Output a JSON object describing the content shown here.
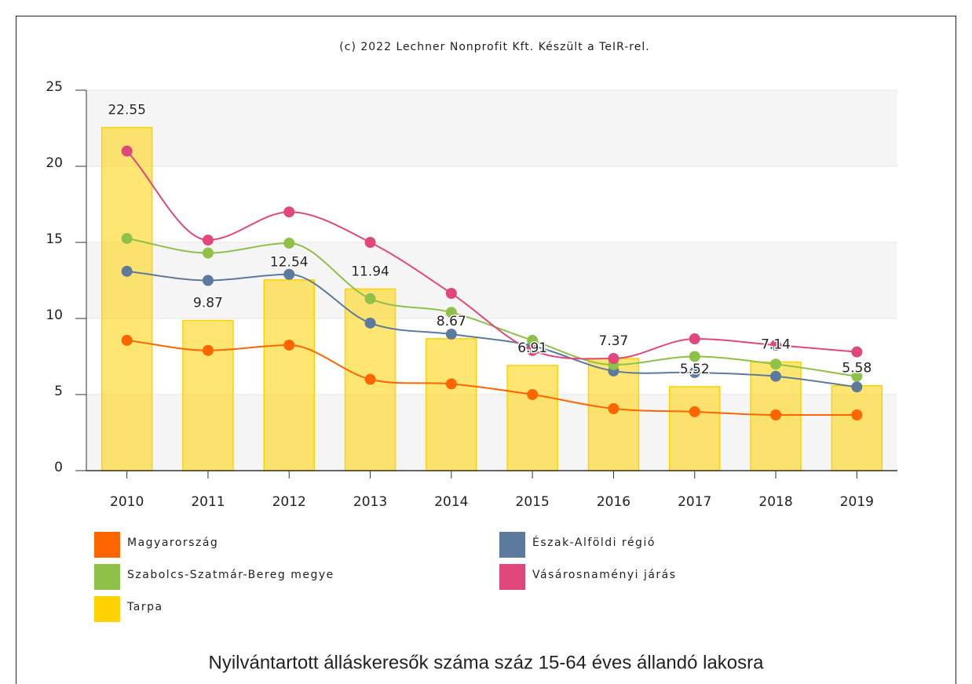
{
  "chart_data": {
    "type": "combo",
    "credits": "(c) 2022 Lechner Nonprofit Kft. Készült a TeIR-rel.",
    "title": "Nyilvántartott álláskeresők száma száz 15-64 éves állandó lakosra",
    "categories": [
      "2010",
      "2011",
      "2012",
      "2013",
      "2014",
      "2015",
      "2016",
      "2017",
      "2018",
      "2019"
    ],
    "ylim": [
      0,
      25
    ],
    "yticks": [
      0,
      5,
      10,
      15,
      20,
      25
    ],
    "grid": true,
    "legend_position": "bottom",
    "series": [
      {
        "name": "Magyarország",
        "type": "line",
        "color": "#ff6600",
        "values": [
          8.56,
          7.9,
          8.25,
          6.0,
          5.7,
          5.0,
          4.07,
          3.87,
          3.66,
          3.66
        ]
      },
      {
        "name": "Észak-Alföldi régió",
        "type": "line",
        "color": "#5b7a9e",
        "values": [
          13.1,
          12.5,
          12.9,
          9.7,
          8.97,
          8.2,
          6.55,
          6.45,
          6.2,
          5.5
        ]
      },
      {
        "name": "Szabolcs-Szatmár-Bereg megye",
        "type": "line",
        "color": "#8fc048",
        "values": [
          15.26,
          14.3,
          14.95,
          11.3,
          10.4,
          8.56,
          6.96,
          7.5,
          7.0,
          6.2
        ]
      },
      {
        "name": "Vásárosnaményi járás",
        "type": "line",
        "color": "#e0487c",
        "values": [
          21.0,
          15.15,
          17.0,
          15.0,
          11.65,
          7.9,
          7.37,
          8.66,
          8.25,
          7.8
        ]
      },
      {
        "name": "Tarpa",
        "type": "bar",
        "color": "#ffd200",
        "data_labels": true,
        "values": [
          22.55,
          9.87,
          12.54,
          11.94,
          8.67,
          6.91,
          7.37,
          5.52,
          7.14,
          5.58
        ]
      }
    ]
  }
}
